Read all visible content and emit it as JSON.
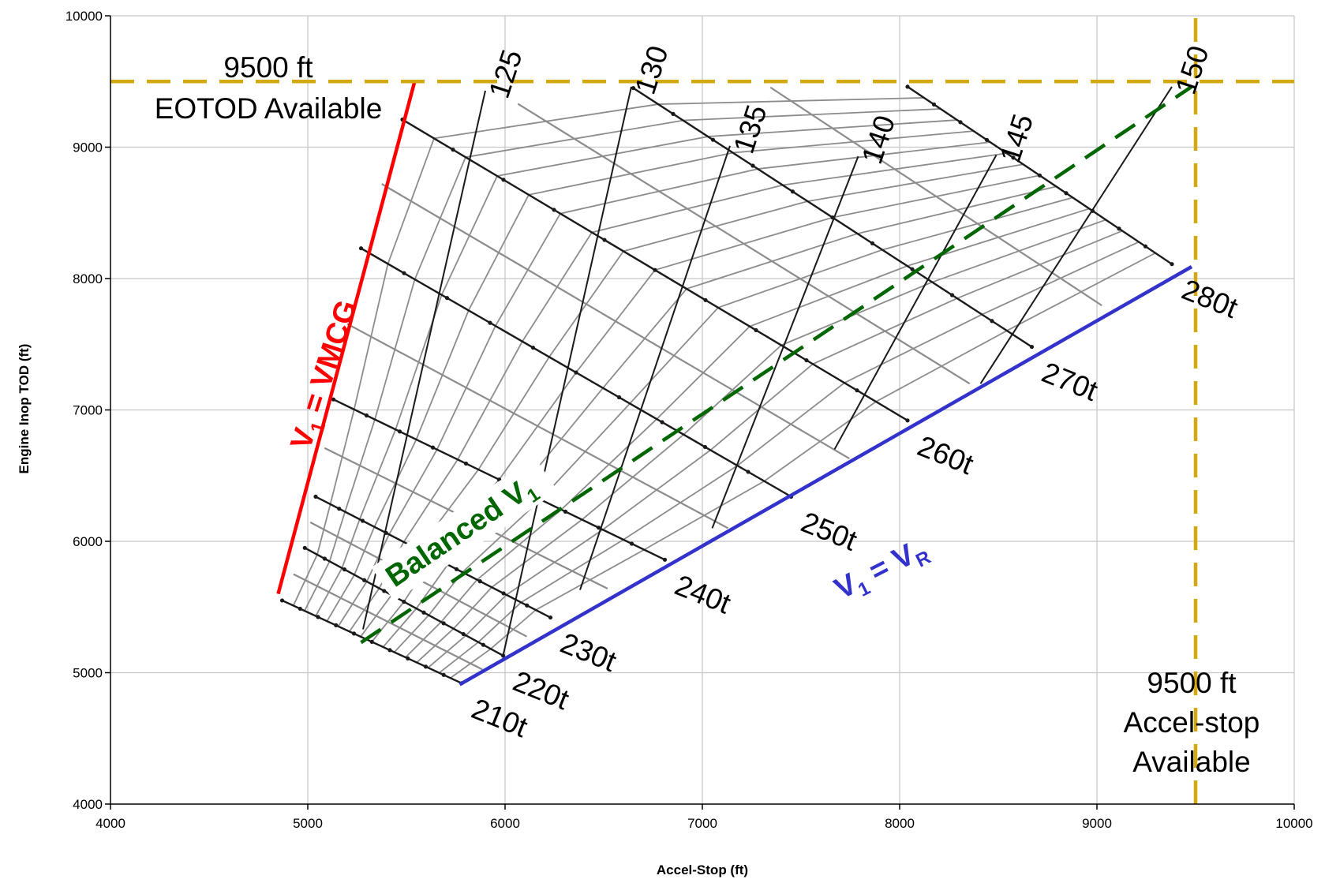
{
  "chart_data": {
    "type": "line",
    "title": "",
    "xlabel": "Accel-Stop (ft)",
    "ylabel": "Engine Inop TOD (ft)",
    "xlim": [
      4000,
      10000
    ],
    "ylim": [
      4000,
      10000
    ],
    "xticks": [
      4000,
      5000,
      6000,
      7000,
      8000,
      9000,
      10000
    ],
    "yticks": [
      4000,
      5000,
      6000,
      7000,
      8000,
      9000,
      10000
    ],
    "grid": true,
    "weight_lines": [
      {
        "label": "210t",
        "x": [
          4870,
          5780
        ],
        "y": [
          5550,
          4920
        ]
      },
      {
        "label": "220t",
        "x": [
          4985,
          5990
        ],
        "y": [
          5950,
          5130
        ]
      },
      {
        "label": "230t",
        "x": [
          5040,
          6230
        ],
        "y": [
          6340,
          5420
        ]
      },
      {
        "label": "240t",
        "x": [
          5130,
          6810
        ],
        "y": [
          7080,
          5860
        ]
      },
      {
        "label": "250t",
        "x": [
          5270,
          7450
        ],
        "y": [
          8230,
          6340
        ]
      },
      {
        "label": "260t",
        "x": [
          5480,
          8040
        ],
        "y": [
          9210,
          6920
        ]
      },
      {
        "label": "270t",
        "x": [
          6650,
          8670
        ],
        "y": [
          9450,
          7480
        ]
      },
      {
        "label": "280t",
        "x": [
          8040,
          9380
        ],
        "y": [
          9460,
          8110
        ]
      }
    ],
    "speed_lines": [
      {
        "label": "125",
        "x": [
          5900,
          5280
        ],
        "y": [
          9430,
          5330
        ]
      },
      {
        "label": "130",
        "x": [
          6640,
          5990
        ],
        "y": [
          9460,
          5130
        ]
      },
      {
        "label": "135",
        "x": [
          7140,
          6380
        ],
        "y": [
          9010,
          5630
        ]
      },
      {
        "label": "140",
        "x": [
          7790,
          7050
        ],
        "y": [
          8930,
          6100
        ]
      },
      {
        "label": "145",
        "x": [
          8490,
          7670
        ],
        "y": [
          8940,
          6700
        ]
      },
      {
        "label": "150",
        "x": [
          9380,
          8410
        ],
        "y": [
          9460,
          7200
        ]
      }
    ],
    "reference_lines": [
      {
        "name": "V1 = VMCG",
        "color": "#ff0000",
        "x": [
          4850,
          5540
        ],
        "y": [
          5600,
          9490
        ]
      },
      {
        "name": "V1 = VR",
        "color": "#3333cc",
        "x": [
          5770,
          9480
        ],
        "y": [
          4910,
          8090
        ]
      },
      {
        "name": "Balanced V1",
        "color": "#006600",
        "dashed": true,
        "x": [
          5270,
          9480
        ],
        "y": [
          5230,
          9460
        ]
      },
      {
        "name": "9500 ft EOTOD Available",
        "color": "#d4a90f",
        "dashed": true,
        "x": [
          4000,
          10000
        ],
        "y": [
          9500,
          9500
        ]
      },
      {
        "name": "9500 ft Accel-stop Available",
        "color": "#d4a90f",
        "dashed": true,
        "x": [
          9500,
          9500
        ],
        "y": [
          4000,
          10000
        ]
      }
    ]
  },
  "labels": {
    "eotod_value": "9500 ft",
    "eotod_text": "EOTOD Available",
    "accel_value": "9500 ft",
    "accel_text1": "Accel-stop",
    "accel_text2": "Available",
    "vmcg_v": "V",
    "vmcg_sub": "1",
    "vmcg_rest": " = VMCG",
    "vr_v": "V",
    "vr_sub": "1",
    "vr_mid": " = V",
    "vr_sub2": "R",
    "balanced_text": "Balanced V",
    "balanced_sub": "1"
  },
  "colors": {
    "vmcg": "#ff0000",
    "vr": "#3333cc",
    "balanced": "#006600",
    "available": "#d4a90f",
    "grid": "#c8c8c8",
    "mesh_dark": "#1a1a1a",
    "mesh_light": "#8c8c8c"
  }
}
